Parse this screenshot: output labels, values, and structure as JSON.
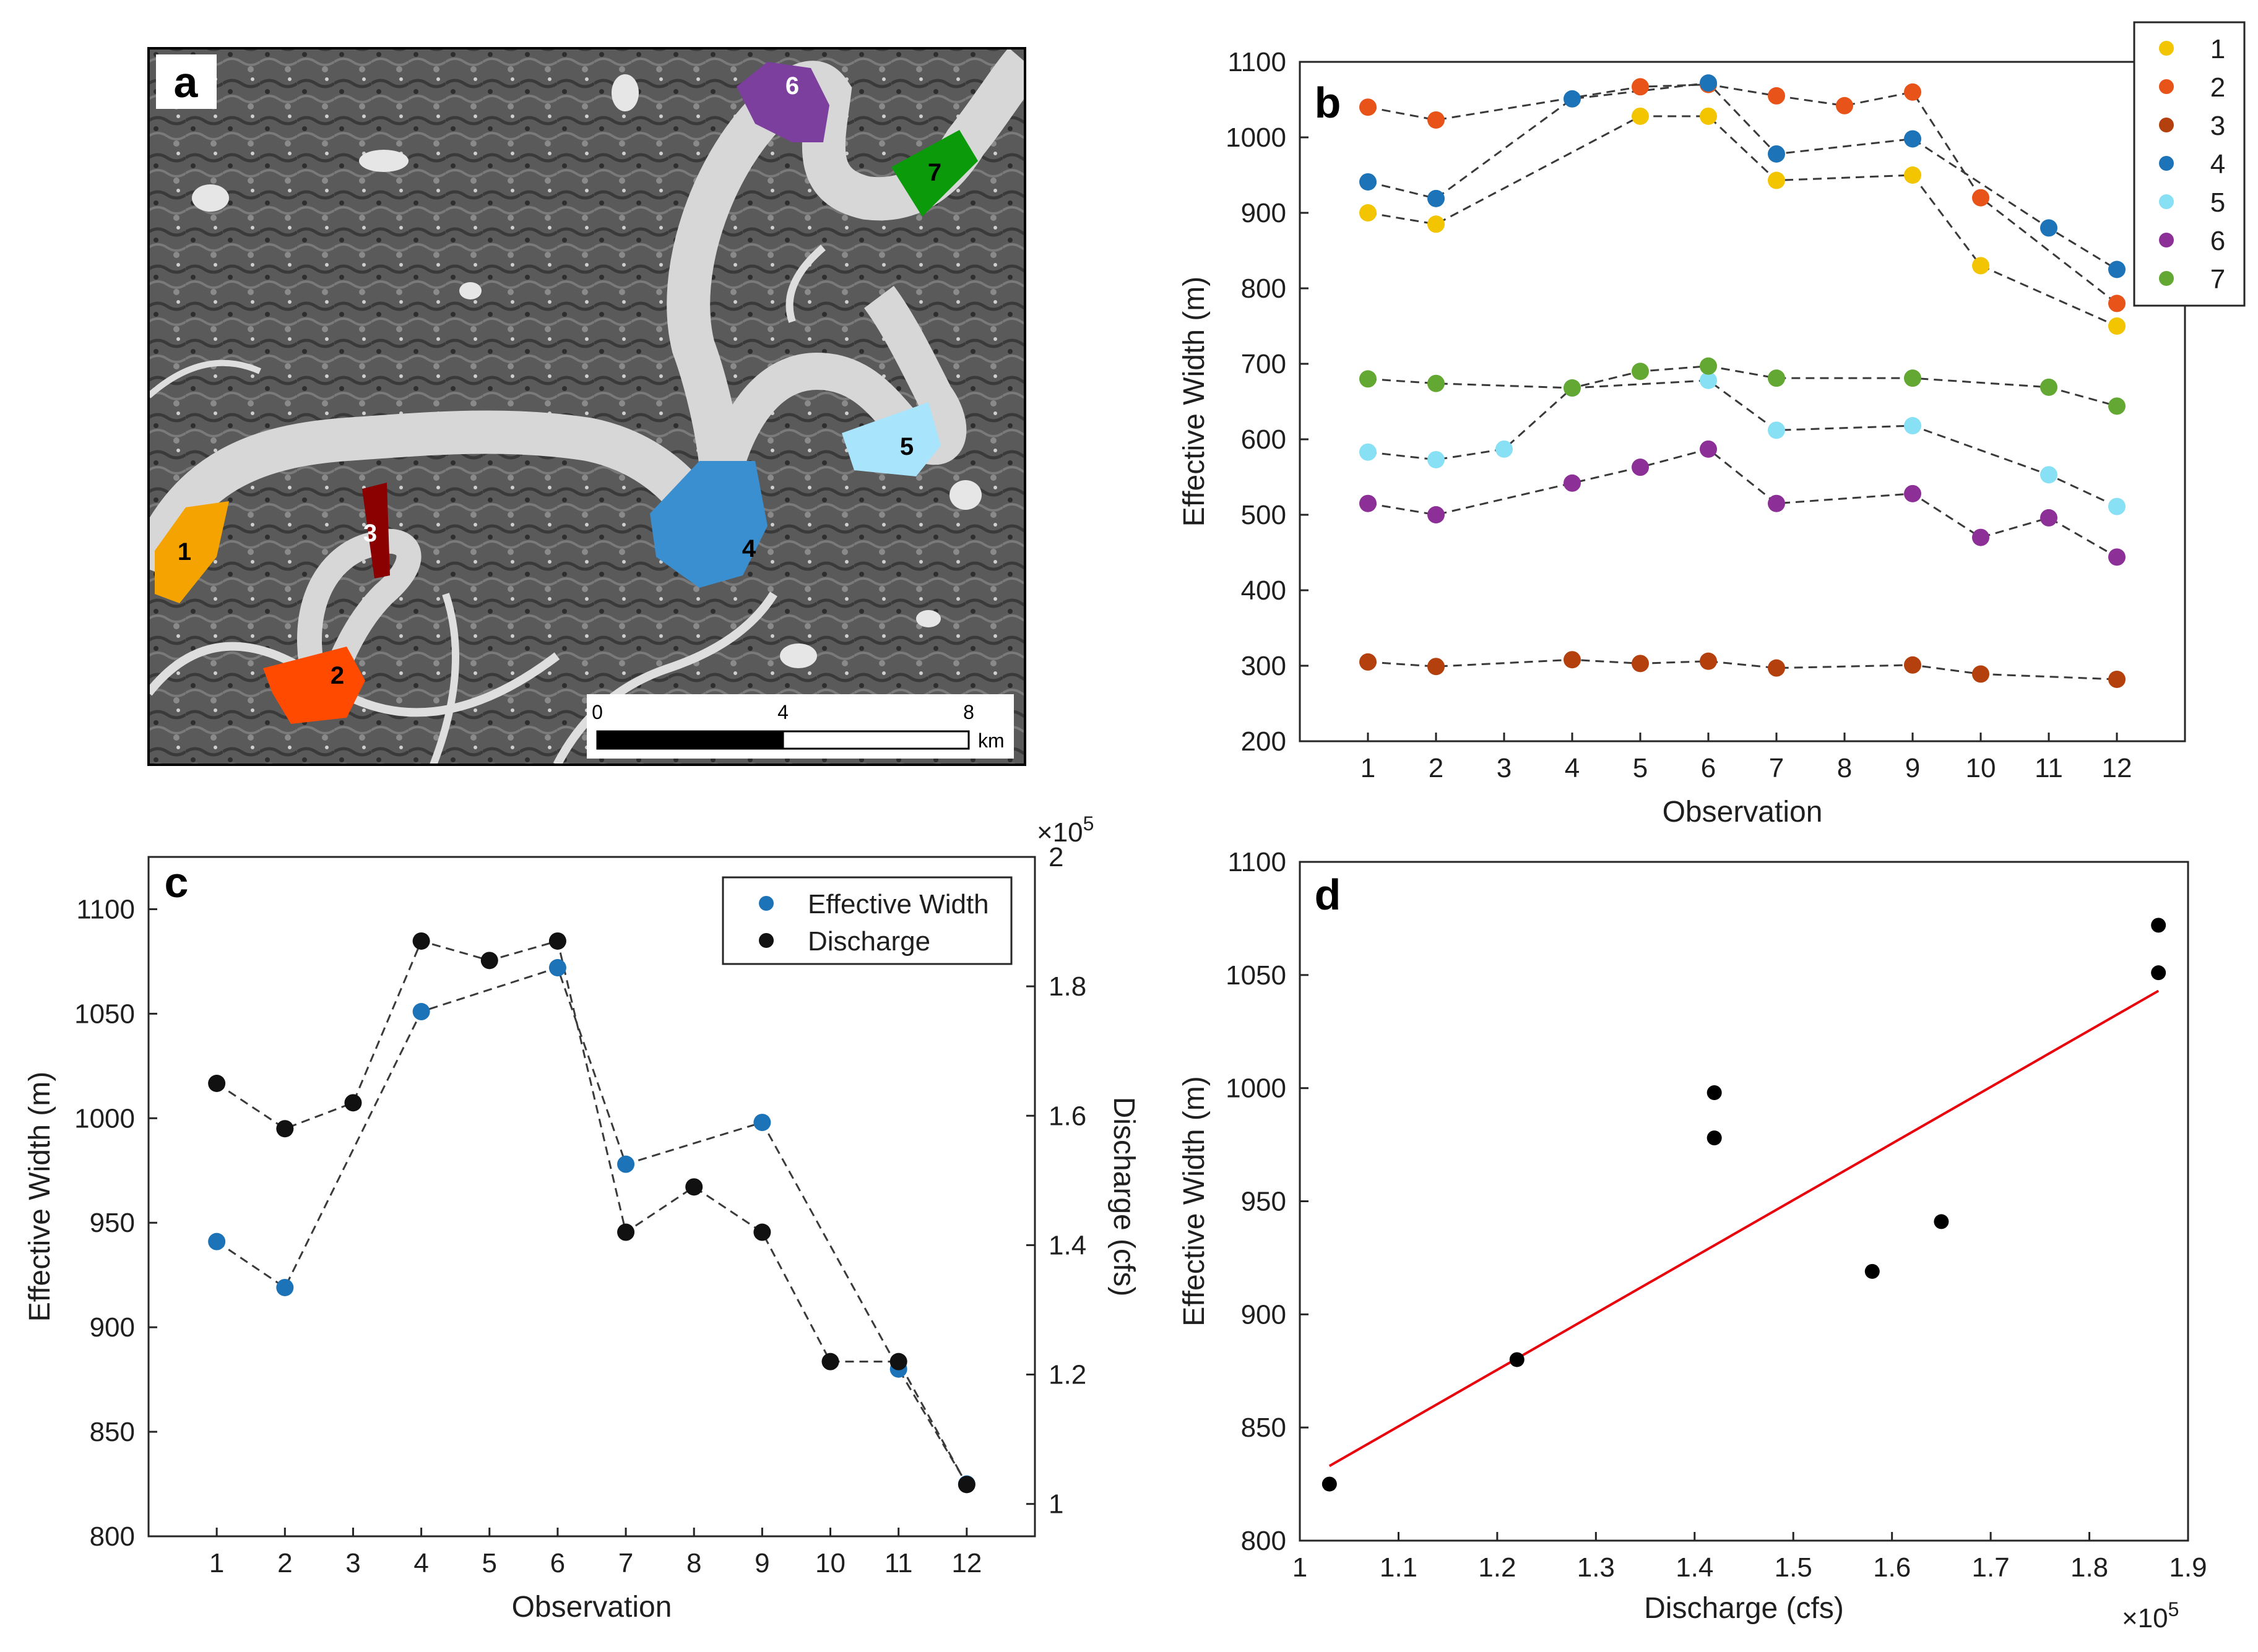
{
  "panels": {
    "a": {
      "label": "a",
      "segments": [
        "1",
        "2",
        "3",
        "4",
        "5",
        "6",
        "7"
      ],
      "segment_colors": [
        "#f5a300",
        "#ff4a00",
        "#8b0000",
        "#3a8fd0",
        "#a8e4fb",
        "#7c3f9e",
        "#0a9a0a"
      ],
      "scalebar": {
        "ticks": [
          "0",
          "4",
          "8"
        ],
        "unit": "km"
      }
    },
    "b": {
      "label": "b"
    },
    "c": {
      "label": "c"
    },
    "d": {
      "label": "d"
    }
  },
  "chart_data": [
    {
      "panel": "b",
      "type": "scatter",
      "xlabel": "Observation",
      "ylabel": "Effective Width (m)",
      "xlim": [
        0,
        13
      ],
      "ylim": [
        200,
        1100
      ],
      "xticks": [
        "1",
        "2",
        "3",
        "4",
        "5",
        "6",
        "7",
        "8",
        "9",
        "10",
        "11",
        "12"
      ],
      "yticks": [
        "200",
        "300",
        "400",
        "500",
        "600",
        "700",
        "800",
        "900",
        "1000",
        "1100"
      ],
      "legend": "top-right",
      "series": [
        {
          "name": "1",
          "color": "#f2c500",
          "points": [
            [
              1,
              900
            ],
            [
              2,
              885
            ],
            [
              5,
              1028
            ],
            [
              6,
              1028
            ],
            [
              7,
              943
            ],
            [
              9,
              950
            ],
            [
              10,
              830
            ],
            [
              12,
              750
            ]
          ]
        },
        {
          "name": "2",
          "color": "#e8531a",
          "points": [
            [
              1,
              1040
            ],
            [
              2,
              1023
            ],
            [
              5,
              1067
            ],
            [
              6,
              1070
            ],
            [
              7,
              1055
            ],
            [
              8,
              1042
            ],
            [
              9,
              1060
            ],
            [
              10,
              920
            ],
            [
              12,
              780
            ]
          ]
        },
        {
          "name": "3",
          "color": "#b3400d",
          "points": [
            [
              1,
              305
            ],
            [
              2,
              299
            ],
            [
              4,
              308
            ],
            [
              5,
              303
            ],
            [
              6,
              306
            ],
            [
              7,
              297
            ],
            [
              9,
              301
            ],
            [
              10,
              289
            ],
            [
              12,
              282
            ]
          ]
        },
        {
          "name": "4",
          "color": "#1d73b7",
          "points": [
            [
              1,
              941
            ],
            [
              2,
              919
            ],
            [
              4,
              1051
            ],
            [
              6,
              1072
            ],
            [
              7,
              978
            ],
            [
              9,
              998
            ],
            [
              11,
              880
            ],
            [
              12,
              825
            ]
          ]
        },
        {
          "name": "5",
          "color": "#88e0f5",
          "points": [
            [
              1,
              583
            ],
            [
              2,
              573
            ],
            [
              3,
              587
            ],
            [
              4,
              668
            ],
            [
              6,
              678
            ],
            [
              7,
              612
            ],
            [
              9,
              618
            ],
            [
              11,
              553
            ],
            [
              12,
              511
            ]
          ]
        },
        {
          "name": "6",
          "color": "#8c2f96",
          "points": [
            [
              1,
              515
            ],
            [
              2,
              500
            ],
            [
              4,
              542
            ],
            [
              5,
              563
            ],
            [
              6,
              587
            ],
            [
              7,
              515
            ],
            [
              9,
              528
            ],
            [
              10,
              470
            ],
            [
              11,
              496
            ],
            [
              12,
              444
            ]
          ]
        },
        {
          "name": "7",
          "color": "#62a832",
          "points": [
            [
              1,
              680
            ],
            [
              2,
              674
            ],
            [
              4,
              668
            ],
            [
              5,
              690
            ],
            [
              6,
              697
            ],
            [
              7,
              681
            ],
            [
              9,
              681
            ],
            [
              11,
              669
            ],
            [
              12,
              644
            ]
          ]
        }
      ]
    },
    {
      "panel": "c",
      "type": "scatter",
      "xlabel": "Observation",
      "ylabel": "Effective Width (m)",
      "ylabel_right": "Discharge (cfs)",
      "exponent_right": "×10",
      "exponent_power": "5",
      "xlim": [
        0,
        13
      ],
      "ylim": [
        800,
        1125
      ],
      "ylim_right": [
        0.95,
        2.0
      ],
      "xticks": [
        "1",
        "2",
        "3",
        "4",
        "5",
        "6",
        "7",
        "8",
        "9",
        "10",
        "11",
        "12"
      ],
      "yticks": [
        "800",
        "850",
        "900",
        "950",
        "1000",
        "1050",
        "1100"
      ],
      "yticks_right": [
        "1",
        "1.2",
        "1.4",
        "1.6",
        "1.8",
        "2"
      ],
      "legend": "top-right",
      "series": [
        {
          "name": "Effective Width",
          "color": "#1d73b7",
          "axis": "left",
          "points": [
            [
              1,
              941
            ],
            [
              2,
              919
            ],
            [
              4,
              1051
            ],
            [
              6,
              1072
            ],
            [
              7,
              978
            ],
            [
              9,
              998
            ],
            [
              11,
              880
            ],
            [
              12,
              825
            ]
          ]
        },
        {
          "name": "Discharge",
          "color": "#111111",
          "axis": "right",
          "points": [
            [
              1,
              1.65
            ],
            [
              2,
              1.58
            ],
            [
              3,
              1.62
            ],
            [
              4,
              1.87
            ],
            [
              5,
              1.84
            ],
            [
              6,
              1.87
            ],
            [
              7,
              1.42
            ],
            [
              8,
              1.49
            ],
            [
              9,
              1.42
            ],
            [
              10,
              1.22
            ],
            [
              11,
              1.22
            ],
            [
              12,
              1.03
            ]
          ]
        }
      ]
    },
    {
      "panel": "d",
      "type": "scatter",
      "xlabel": "Discharge (cfs)",
      "ylabel": "Effective Width (m)",
      "exponent": "×10",
      "exponent_power": "5",
      "xlim": [
        1.0,
        1.9
      ],
      "ylim": [
        800,
        1100
      ],
      "xticks": [
        "1",
        "1.1",
        "1.2",
        "1.3",
        "1.4",
        "1.5",
        "1.6",
        "1.7",
        "1.8",
        "1.9"
      ],
      "yticks": [
        "800",
        "850",
        "900",
        "950",
        "1000",
        "1050",
        "1100"
      ],
      "points": [
        [
          1.03,
          825
        ],
        [
          1.22,
          880
        ],
        [
          1.42,
          998
        ],
        [
          1.42,
          978
        ],
        [
          1.58,
          919
        ],
        [
          1.65,
          941
        ],
        [
          1.87,
          1072
        ],
        [
          1.87,
          1051
        ]
      ],
      "fit_line": {
        "color": "#e8000b",
        "from": [
          1.03,
          833
        ],
        "to": [
          1.87,
          1043
        ]
      }
    }
  ]
}
